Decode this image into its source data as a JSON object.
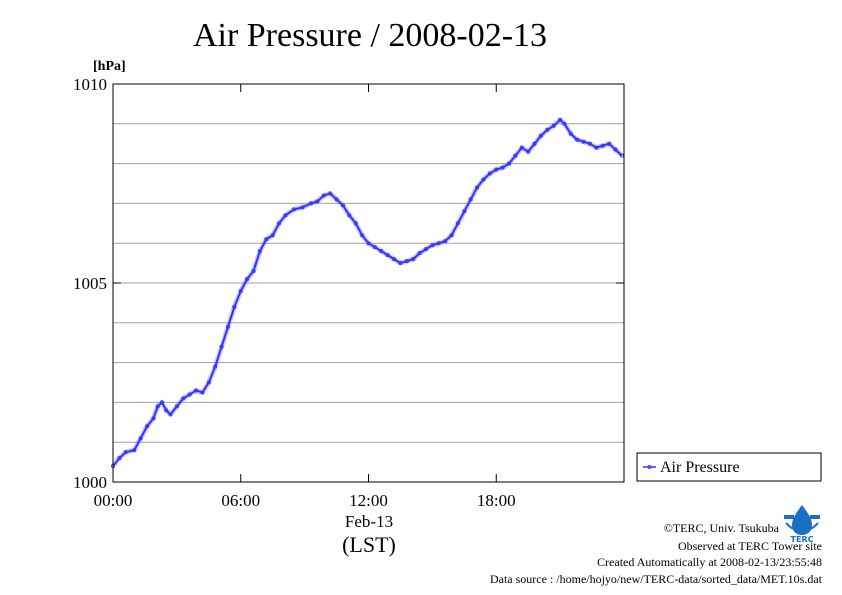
{
  "chart_data": {
    "type": "line",
    "title": "Air Pressure / 2008-02-13",
    "ylabel": "[hPa]",
    "xlabel": "(LST)",
    "date_label": "Feb-13",
    "xlim": [
      0,
      24
    ],
    "ylim": [
      1000,
      1010
    ],
    "x_ticks": [
      {
        "value": 0,
        "label": "00:00"
      },
      {
        "value": 6,
        "label": "06:00"
      },
      {
        "value": 12,
        "label": "12:00"
      },
      {
        "value": 18,
        "label": "18:00"
      }
    ],
    "y_ticks": [
      {
        "value": 1000,
        "label": "1000"
      },
      {
        "value": 1005,
        "label": "1005"
      },
      {
        "value": 1010,
        "label": "1010"
      }
    ],
    "y_gridlines": [
      1001,
      1002,
      1003,
      1004,
      1005,
      1006,
      1007,
      1008,
      1009
    ],
    "grid": "horizontal",
    "legend_position": "right",
    "series": [
      {
        "name": "Air Pressure",
        "color": "#3333ff",
        "points": [
          [
            0.0,
            1000.4
          ],
          [
            0.3,
            1000.6
          ],
          [
            0.6,
            1000.75
          ],
          [
            1.0,
            1000.8
          ],
          [
            1.3,
            1001.1
          ],
          [
            1.6,
            1001.4
          ],
          [
            1.9,
            1001.6
          ],
          [
            2.1,
            1001.9
          ],
          [
            2.3,
            1002.0
          ],
          [
            2.5,
            1001.8
          ],
          [
            2.7,
            1001.7
          ],
          [
            3.0,
            1001.9
          ],
          [
            3.3,
            1002.1
          ],
          [
            3.6,
            1002.2
          ],
          [
            3.9,
            1002.3
          ],
          [
            4.2,
            1002.25
          ],
          [
            4.5,
            1002.5
          ],
          [
            4.8,
            1002.9
          ],
          [
            5.1,
            1003.4
          ],
          [
            5.4,
            1003.9
          ],
          [
            5.7,
            1004.4
          ],
          [
            6.0,
            1004.8
          ],
          [
            6.3,
            1005.1
          ],
          [
            6.6,
            1005.3
          ],
          [
            6.9,
            1005.8
          ],
          [
            7.2,
            1006.1
          ],
          [
            7.5,
            1006.2
          ],
          [
            7.8,
            1006.5
          ],
          [
            8.1,
            1006.7
          ],
          [
            8.5,
            1006.85
          ],
          [
            8.9,
            1006.9
          ],
          [
            9.3,
            1007.0
          ],
          [
            9.6,
            1007.05
          ],
          [
            9.9,
            1007.2
          ],
          [
            10.2,
            1007.25
          ],
          [
            10.5,
            1007.1
          ],
          [
            10.8,
            1006.95
          ],
          [
            11.1,
            1006.7
          ],
          [
            11.4,
            1006.5
          ],
          [
            11.7,
            1006.2
          ],
          [
            12.0,
            1006.0
          ],
          [
            12.3,
            1005.9
          ],
          [
            12.6,
            1005.8
          ],
          [
            12.9,
            1005.7
          ],
          [
            13.2,
            1005.6
          ],
          [
            13.5,
            1005.5
          ],
          [
            13.8,
            1005.55
          ],
          [
            14.1,
            1005.6
          ],
          [
            14.4,
            1005.75
          ],
          [
            14.7,
            1005.85
          ],
          [
            15.0,
            1005.95
          ],
          [
            15.3,
            1006.0
          ],
          [
            15.6,
            1006.05
          ],
          [
            15.9,
            1006.2
          ],
          [
            16.2,
            1006.5
          ],
          [
            16.5,
            1006.8
          ],
          [
            16.8,
            1007.1
          ],
          [
            17.1,
            1007.4
          ],
          [
            17.4,
            1007.6
          ],
          [
            17.7,
            1007.75
          ],
          [
            18.0,
            1007.85
          ],
          [
            18.3,
            1007.9
          ],
          [
            18.6,
            1008.0
          ],
          [
            18.9,
            1008.2
          ],
          [
            19.2,
            1008.4
          ],
          [
            19.5,
            1008.3
          ],
          [
            19.8,
            1008.5
          ],
          [
            20.1,
            1008.7
          ],
          [
            20.4,
            1008.85
          ],
          [
            20.7,
            1008.95
          ],
          [
            21.0,
            1009.1
          ],
          [
            21.2,
            1009.0
          ],
          [
            21.5,
            1008.75
          ],
          [
            21.8,
            1008.6
          ],
          [
            22.1,
            1008.55
          ],
          [
            22.4,
            1008.5
          ],
          [
            22.7,
            1008.4
          ],
          [
            23.0,
            1008.45
          ],
          [
            23.3,
            1008.5
          ],
          [
            23.6,
            1008.35
          ],
          [
            23.9,
            1008.2
          ]
        ]
      }
    ]
  },
  "credits": {
    "copyright": "©TERC, Univ. Tsukuba",
    "observed": "Observed at TERC Tower site",
    "created": "Created Automatically at 2008-02-13/23:55:48",
    "source": "Data source : /home/hojyo/new/TERC-data/sorted_data/MET.10s.dat",
    "logo_text": "TERC"
  }
}
